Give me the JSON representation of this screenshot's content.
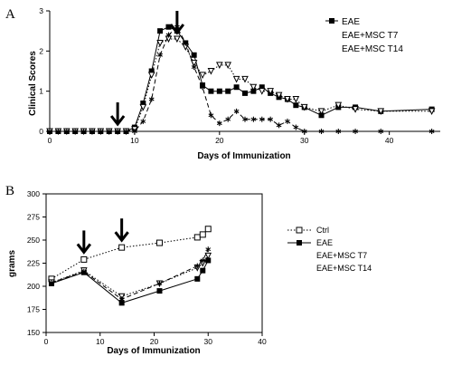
{
  "chart_data": [
    {
      "type": "line",
      "panel_label": "A",
      "xlabel": "Days of Immunization",
      "ylabel": "Clinical Scores",
      "xlim": [
        0,
        46
      ],
      "ylim": [
        0,
        3
      ],
      "xticks": [
        0,
        10,
        20,
        30,
        40
      ],
      "yticks": [
        0,
        1,
        2,
        3
      ],
      "arrows_at_x": [
        8,
        15
      ],
      "legend_position": "top-right",
      "series": [
        {
          "name": "EAE",
          "marker": "filled-square",
          "line": "solid",
          "x": [
            0,
            1,
            2,
            3,
            4,
            5,
            6,
            7,
            8,
            9,
            10,
            11,
            12,
            13,
            14,
            15,
            16,
            17,
            18,
            19,
            20,
            21,
            22,
            23,
            24,
            25,
            26,
            27,
            28,
            29,
            30,
            32,
            34,
            36,
            39,
            45
          ],
          "y": [
            0,
            0,
            0,
            0,
            0,
            0,
            0,
            0,
            0,
            0,
            0.1,
            0.7,
            1.5,
            2.5,
            2.6,
            2.5,
            2.2,
            1.9,
            1.15,
            1.0,
            1.0,
            1.0,
            1.1,
            0.95,
            1.0,
            1.1,
            0.95,
            0.85,
            0.8,
            0.65,
            0.6,
            0.4,
            0.6,
            0.6,
            0.5,
            0.55
          ]
        },
        {
          "name": "EAE+MSC T7",
          "marker": "open-down-triangle",
          "line": "dotted",
          "x": [
            0,
            1,
            2,
            3,
            4,
            5,
            6,
            7,
            8,
            9,
            10,
            11,
            12,
            13,
            14,
            15,
            16,
            17,
            18,
            19,
            20,
            21,
            22,
            23,
            24,
            25,
            26,
            27,
            28,
            29,
            30,
            32,
            34,
            36,
            39,
            45
          ],
          "y": [
            0,
            0,
            0,
            0,
            0,
            0,
            0,
            0,
            0,
            0,
            0.05,
            0.6,
            1.4,
            2.2,
            2.3,
            2.3,
            2.1,
            1.7,
            1.4,
            1.5,
            1.65,
            1.65,
            1.3,
            1.3,
            1.1,
            1.0,
            1.0,
            0.9,
            0.8,
            0.8,
            0.6,
            0.5,
            0.65,
            0.55,
            0.5,
            0.5
          ]
        },
        {
          "name": "EAE+MSC T14",
          "marker": "asterisk",
          "line": "dashed",
          "x": [
            0,
            1,
            2,
            3,
            4,
            5,
            6,
            7,
            8,
            9,
            10,
            11,
            12,
            13,
            14,
            15,
            16,
            17,
            18,
            19,
            20,
            21,
            22,
            23,
            24,
            25,
            26,
            27,
            28,
            29,
            30,
            32,
            34,
            36,
            39,
            45
          ],
          "y": [
            0,
            0,
            0,
            0,
            0,
            0,
            0,
            0,
            0,
            0,
            0,
            0.25,
            0.8,
            1.9,
            2.4,
            2.6,
            2.2,
            1.6,
            1.1,
            0.4,
            0.2,
            0.3,
            0.5,
            0.3,
            0.3,
            0.3,
            0.3,
            0.15,
            0.25,
            0.1,
            0,
            0,
            0,
            0,
            0,
            0
          ]
        }
      ]
    },
    {
      "type": "line",
      "panel_label": "B",
      "xlabel": "Days of Immunization",
      "ylabel": "grams",
      "xlim": [
        0,
        40
      ],
      "ylim": [
        150,
        300
      ],
      "xticks": [
        0,
        10,
        20,
        30,
        40
      ],
      "yticks": [
        150,
        175,
        200,
        225,
        250,
        275,
        300
      ],
      "arrows_at_x": [
        7,
        14
      ],
      "legend_position": "right",
      "series": [
        {
          "name": "Ctrl",
          "marker": "open-square",
          "line": "dotted",
          "x": [
            1,
            7,
            14,
            21,
            28,
            29,
            30
          ],
          "y": [
            208,
            229,
            242,
            247,
            253,
            256,
            262
          ]
        },
        {
          "name": "EAE",
          "marker": "filled-square",
          "line": "solid",
          "x": [
            1,
            7,
            14,
            21,
            28,
            29,
            30
          ],
          "y": [
            203,
            215,
            182,
            195,
            208,
            217,
            228
          ]
        },
        {
          "name": "EAE+MSC T7",
          "marker": "open-down-triangle",
          "line": "dotted",
          "x": [
            1,
            7,
            14,
            21,
            28,
            29,
            30
          ],
          "y": [
            204,
            217,
            189,
            203,
            220,
            225,
            233
          ]
        },
        {
          "name": "EAE+MSC T14",
          "marker": "asterisk",
          "line": "dashed",
          "x": [
            1,
            7,
            14,
            21,
            28,
            29,
            30
          ],
          "y": [
            204,
            216,
            186,
            203,
            222,
            228,
            240
          ]
        }
      ]
    }
  ]
}
